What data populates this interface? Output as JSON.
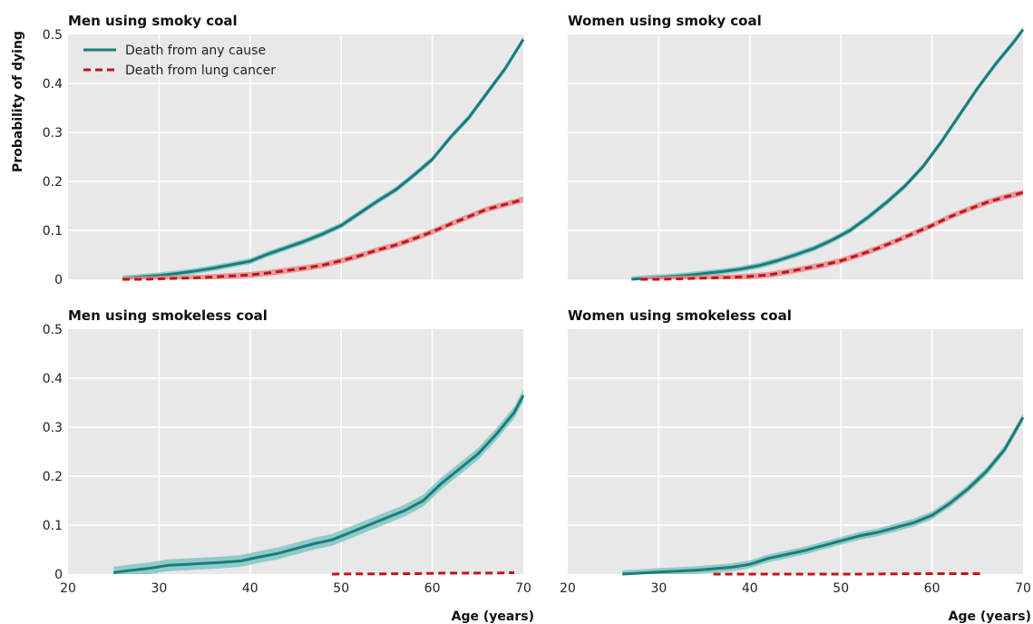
{
  "chart_data": {
    "type": "line",
    "ylabel": "Probability of dying",
    "xlabel": "Age (years)",
    "xlim": [
      20,
      70
    ],
    "ylim": [
      0,
      0.5
    ],
    "x_ticks": [
      20,
      30,
      40,
      50,
      60,
      70
    ],
    "y_ticks": [
      "0",
      "0.1",
      "0.2",
      "0.3",
      "0.4",
      "0.5"
    ],
    "colors": {
      "any_cause": "#1b7b7b",
      "any_cause_band": "#7fc6c2",
      "lung_cancer": "#c0141c",
      "lung_cancer_band": "#e78c8c",
      "panel_bg": "#e8e8e8"
    },
    "legend": {
      "position": "top-left",
      "entries": [
        {
          "label": "Death from any cause",
          "style": "solid",
          "color": "#1b7b7b"
        },
        {
          "label": "Death from lung cancer",
          "style": "dashed",
          "color": "#c0141c"
        }
      ]
    },
    "panels": [
      {
        "title": "Men using smoky coal",
        "series": [
          {
            "key": "any",
            "x": [
              26,
              28,
              30,
              32,
              34,
              36,
              38,
              40,
              42,
              44,
              46,
              48,
              50,
              52,
              54,
              56,
              58,
              60,
              62,
              64,
              66,
              68,
              70
            ],
            "y": [
              0.002,
              0.005,
              0.008,
              0.012,
              0.017,
              0.023,
              0.03,
              0.037,
              0.052,
              0.065,
              0.078,
              0.093,
              0.11,
              0.135,
              0.16,
              0.183,
              0.213,
              0.245,
              0.29,
              0.33,
              0.38,
              0.43,
              0.49
            ],
            "band": 0.006
          },
          {
            "key": "lung",
            "x": [
              26,
              28,
              30,
              32,
              34,
              36,
              38,
              40,
              42,
              44,
              46,
              48,
              50,
              52,
              54,
              56,
              58,
              60,
              62,
              64,
              66,
              68,
              70
            ],
            "y": [
              0.0,
              0.0,
              0.001,
              0.002,
              0.003,
              0.005,
              0.007,
              0.009,
              0.013,
              0.018,
              0.023,
              0.029,
              0.038,
              0.048,
              0.06,
              0.07,
              0.083,
              0.097,
              0.113,
              0.128,
              0.143,
              0.153,
              0.163
            ],
            "band": 0.006
          }
        ]
      },
      {
        "title": "Women using smoky coal",
        "series": [
          {
            "key": "any",
            "x": [
              27,
              29,
              31,
              33,
              35,
              37,
              39,
              41,
              43,
              45,
              47,
              49,
              51,
              53,
              55,
              57,
              59,
              61,
              63,
              65,
              67,
              69,
              70
            ],
            "y": [
              0.0,
              0.003,
              0.005,
              0.008,
              0.012,
              0.016,
              0.021,
              0.028,
              0.038,
              0.05,
              0.063,
              0.08,
              0.1,
              0.127,
              0.157,
              0.19,
              0.23,
              0.28,
              0.335,
              0.39,
              0.44,
              0.485,
              0.51
            ],
            "band": 0.006
          },
          {
            "key": "lung",
            "x": [
              28,
              30,
              32,
              34,
              36,
              38,
              40,
              42,
              44,
              46,
              48,
              50,
              52,
              54,
              56,
              58,
              60,
              62,
              64,
              66,
              68,
              70
            ],
            "y": [
              0.0,
              0.0,
              0.001,
              0.002,
              0.003,
              0.004,
              0.006,
              0.009,
              0.015,
              0.022,
              0.029,
              0.038,
              0.05,
              0.063,
              0.078,
              0.094,
              0.11,
              0.128,
              0.143,
              0.157,
              0.168,
              0.177
            ],
            "band": 0.006
          }
        ]
      },
      {
        "title": "Men using smokeless coal",
        "series": [
          {
            "key": "any",
            "x": [
              25,
              27,
              29,
              31,
              33,
              35,
              37,
              39,
              41,
              43,
              45,
              47,
              49,
              51,
              53,
              55,
              57,
              59,
              61,
              63,
              65,
              67,
              69,
              70
            ],
            "y": [
              0.003,
              0.008,
              0.012,
              0.018,
              0.02,
              0.022,
              0.024,
              0.027,
              0.035,
              0.042,
              0.052,
              0.062,
              0.07,
              0.085,
              0.1,
              0.115,
              0.13,
              0.15,
              0.185,
              0.215,
              0.245,
              0.285,
              0.33,
              0.365
            ],
            "band": 0.012
          },
          {
            "key": "lung",
            "x": [
              49,
              52,
              55,
              58,
              61,
              64,
              67,
              69
            ],
            "y": [
              0.0,
              0.0005,
              0.0005,
              0.001,
              0.002,
              0.002,
              0.002,
              0.003
            ],
            "band": 0.0
          }
        ]
      },
      {
        "title": "Women using smokeless coal",
        "series": [
          {
            "key": "any",
            "x": [
              26,
              28,
              30,
              32,
              34,
              36,
              38,
              40,
              42,
              44,
              46,
              48,
              50,
              52,
              54,
              56,
              58,
              60,
              62,
              64,
              66,
              68,
              70
            ],
            "y": [
              0.0,
              0.002,
              0.004,
              0.006,
              0.008,
              0.011,
              0.014,
              0.02,
              0.032,
              0.04,
              0.048,
              0.058,
              0.068,
              0.078,
              0.085,
              0.095,
              0.105,
              0.12,
              0.145,
              0.175,
              0.21,
              0.255,
              0.32
            ],
            "band": 0.008
          },
          {
            "key": "lung",
            "x": [
              36,
              40,
              44,
              48,
              52,
              56,
              60,
              63,
              65.5
            ],
            "y": [
              0.0,
              0.0,
              0.0,
              0.0,
              0.0,
              0.0005,
              0.001,
              0.001,
              0.001
            ],
            "band": 0.0
          }
        ]
      }
    ]
  }
}
